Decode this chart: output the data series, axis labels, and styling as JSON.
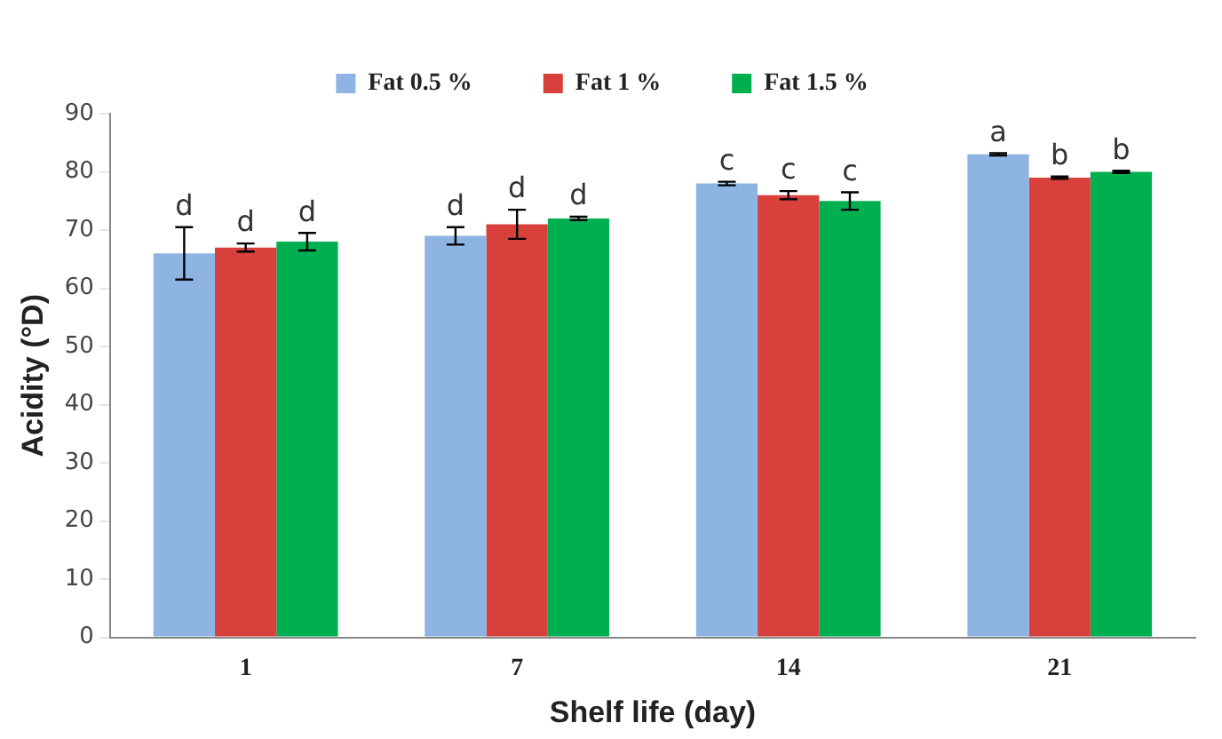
{
  "chart_data": {
    "type": "bar",
    "xlabel": "Shelf life (day)",
    "ylabel": "Acidity (°D)",
    "categories": [
      "1",
      "7",
      "14",
      "21"
    ],
    "series": [
      {
        "name": "Fat 0.5 %",
        "color": "#8db4e2",
        "values": [
          66,
          69,
          78,
          83
        ],
        "errors": [
          4.5,
          1.5,
          0.3,
          0.2
        ],
        "value_labels": [
          "d",
          "d",
          "c",
          "a"
        ]
      },
      {
        "name": "Fat 1 %",
        "color": "#d7403b",
        "values": [
          67,
          71,
          76,
          79
        ],
        "errors": [
          0.7,
          2.5,
          0.7,
          0.2
        ],
        "value_labels": [
          "d",
          "d",
          "c",
          "b"
        ]
      },
      {
        "name": "Fat 1.5 %",
        "color": "#00b050",
        "values": [
          68,
          72,
          75,
          80
        ],
        "errors": [
          1.5,
          0.3,
          1.5,
          0.2
        ],
        "value_labels": [
          "d",
          "d",
          "c",
          "b"
        ]
      }
    ],
    "ylim": [
      0,
      90
    ],
    "yticks": [
      0,
      10,
      20,
      30,
      40,
      50,
      60,
      70,
      80,
      90
    ],
    "grid": false,
    "legend": "top"
  }
}
